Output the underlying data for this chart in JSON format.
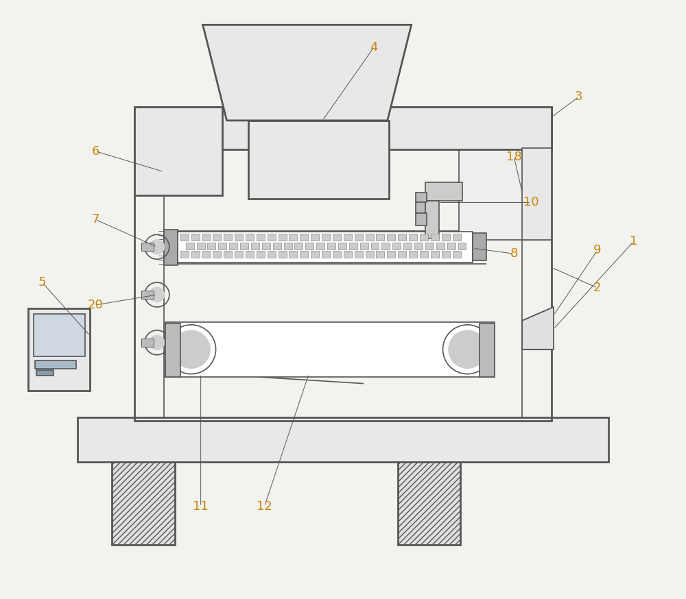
{
  "bg_color": "#f2f2ee",
  "line_color": "#555555",
  "label_color": "#c8860a",
  "fig_width": 10.0,
  "fig_height": 8.74,
  "dpi": 100
}
